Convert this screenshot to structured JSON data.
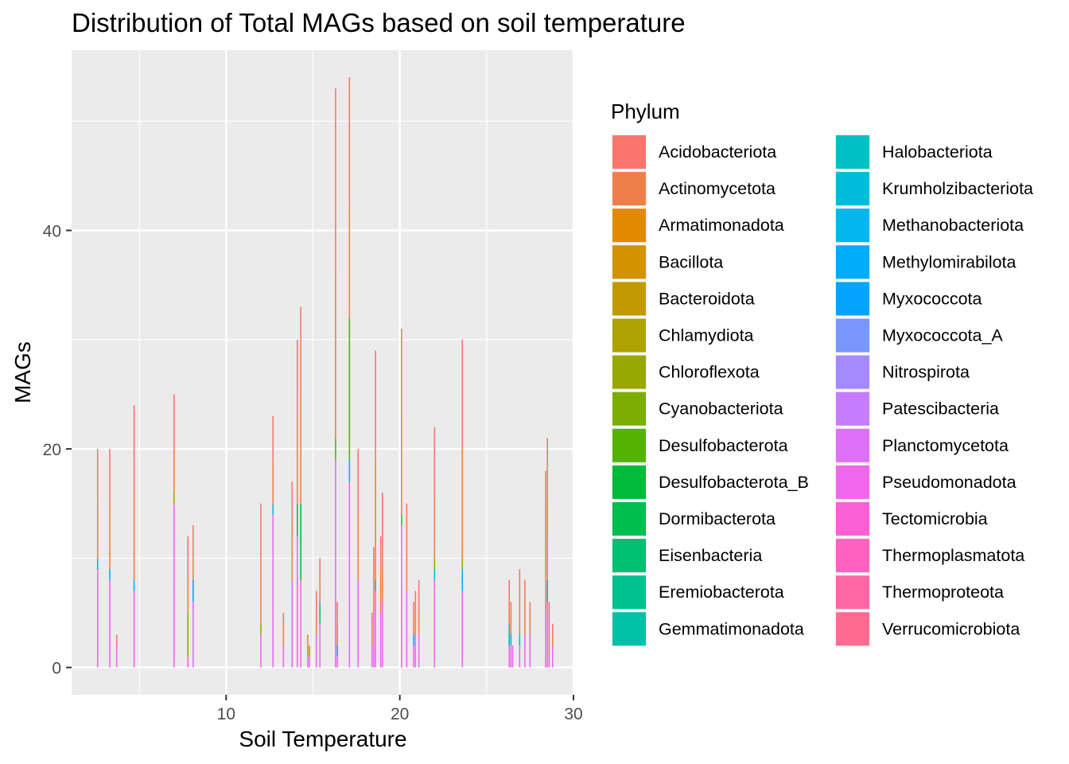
{
  "chart_data": {
    "type": "bar",
    "stacked": true,
    "title": "Distribution of Total MAGs based on soil temperature",
    "xlabel": "Soil Temperature",
    "ylabel": "MAGs",
    "xlim": [
      1.1,
      30
    ],
    "ylim": [
      -2.5,
      56.5
    ],
    "x_ticks": [
      10,
      20,
      30
    ],
    "y_ticks": [
      0,
      20,
      40
    ],
    "grid": true,
    "panel_background": "#ebebeb",
    "legend": {
      "title": "Phylum",
      "placement": "right",
      "columns": 2,
      "items": [
        {
          "name": "Acidobacteriota",
          "color": "#F8766D"
        },
        {
          "name": "Actinomycetota",
          "color": "#EF7F49"
        },
        {
          "name": "Armatimonadota",
          "color": "#E38900"
        },
        {
          "name": "Bacillota",
          "color": "#D39200"
        },
        {
          "name": "Bacteroidota",
          "color": "#C29A00"
        },
        {
          "name": "Chlamydiota",
          "color": "#AFA100"
        },
        {
          "name": "Chloroflexota",
          "color": "#99A800"
        },
        {
          "name": "Cyanobacteriota",
          "color": "#7CAE00"
        },
        {
          "name": "Desulfobacterota",
          "color": "#53B400"
        },
        {
          "name": "Desulfobacterota_B",
          "color": "#00BA38"
        },
        {
          "name": "Dormibacterota",
          "color": "#00BE4E"
        },
        {
          "name": "Eisenbacteria",
          "color": "#00C071"
        },
        {
          "name": "Eremiobacterota",
          "color": "#00C08D"
        },
        {
          "name": "Gemmatimonadota",
          "color": "#00C0A7"
        },
        {
          "name": "Halobacteriota",
          "color": "#00BFC4"
        },
        {
          "name": "Krumholzibacteriota",
          "color": "#00BBDA"
        },
        {
          "name": "Methanobacteriota",
          "color": "#00B6EB"
        },
        {
          "name": "Methylomirabilota",
          "color": "#00ACFC"
        },
        {
          "name": "Myxococcota",
          "color": "#06A4FF"
        },
        {
          "name": "Myxococcota_A",
          "color": "#7997FF"
        },
        {
          "name": "Nitrospirota",
          "color": "#A58AFF"
        },
        {
          "name": "Patescibacteria",
          "color": "#C77CFF"
        },
        {
          "name": "Planctomycetota",
          "color": "#DF70F8"
        },
        {
          "name": "Pseudomonadota",
          "color": "#EF67EB"
        },
        {
          "name": "Tectomicrobia",
          "color": "#FB61D7"
        },
        {
          "name": "Thermoplasmatota",
          "color": "#FF62C0"
        },
        {
          "name": "Thermoproteota",
          "color": "#FF67A4"
        },
        {
          "name": "Verrucomicrobiota",
          "color": "#FF6C90"
        }
      ]
    },
    "bars": [
      {
        "x": 2.6,
        "segments": [
          {
            "phylum": "Pseudomonadota",
            "value": 9
          },
          {
            "phylum": "Methylomirabilota",
            "value": 1
          },
          {
            "phylum": "Actinomycetota",
            "value": 5
          },
          {
            "phylum": "Acidobacteriota",
            "value": 5
          }
        ]
      },
      {
        "x": 3.3,
        "segments": [
          {
            "phylum": "Pseudomonadota",
            "value": 8
          },
          {
            "phylum": "Methylomirabilota",
            "value": 1
          },
          {
            "phylum": "Actinomycetota",
            "value": 6
          },
          {
            "phylum": "Acidobacteriota",
            "value": 5
          }
        ]
      },
      {
        "x": 3.7,
        "segments": [
          {
            "phylum": "Pseudomonadota",
            "value": 2
          },
          {
            "phylum": "Acidobacteriota",
            "value": 1
          }
        ]
      },
      {
        "x": 4.7,
        "segments": [
          {
            "phylum": "Pseudomonadota",
            "value": 7
          },
          {
            "phylum": "Methylomirabilota",
            "value": 1
          },
          {
            "phylum": "Actinomycetota",
            "value": 8
          },
          {
            "phylum": "Acidobacteriota",
            "value": 8
          }
        ]
      },
      {
        "x": 7.0,
        "segments": [
          {
            "phylum": "Pseudomonadota",
            "value": 15
          },
          {
            "phylum": "Chloroflexota",
            "value": 1
          },
          {
            "phylum": "Actinomycetota",
            "value": 4
          },
          {
            "phylum": "Acidobacteriota",
            "value": 5
          }
        ]
      },
      {
        "x": 7.8,
        "segments": [
          {
            "phylum": "Pseudomonadota",
            "value": 1
          },
          {
            "phylum": "Chloroflexota",
            "value": 4
          },
          {
            "phylum": "Actinomycetota",
            "value": 3
          },
          {
            "phylum": "Acidobacteriota",
            "value": 4
          }
        ]
      },
      {
        "x": 8.1,
        "segments": [
          {
            "phylum": "Pseudomonadota",
            "value": 6
          },
          {
            "phylum": "Myxococcota",
            "value": 2
          },
          {
            "phylum": "Actinomycetota",
            "value": 2
          },
          {
            "phylum": "Acidobacteriota",
            "value": 3
          }
        ]
      },
      {
        "x": 12.0,
        "segments": [
          {
            "phylum": "Pseudomonadota",
            "value": 3
          },
          {
            "phylum": "Chloroflexota",
            "value": 1
          },
          {
            "phylum": "Actinomycetota",
            "value": 6
          },
          {
            "phylum": "Acidobacteriota",
            "value": 5
          }
        ]
      },
      {
        "x": 12.7,
        "segments": [
          {
            "phylum": "Pseudomonadota",
            "value": 14
          },
          {
            "phylum": "Halobacteriota",
            "value": 1
          },
          {
            "phylum": "Actinomycetota",
            "value": 4
          },
          {
            "phylum": "Acidobacteriota",
            "value": 4
          }
        ]
      },
      {
        "x": 13.3,
        "segments": [
          {
            "phylum": "Pseudomonadota",
            "value": 2
          },
          {
            "phylum": "Actinomycetota",
            "value": 2
          },
          {
            "phylum": "Acidobacteriota",
            "value": 1
          }
        ]
      },
      {
        "x": 13.8,
        "segments": [
          {
            "phylum": "Pseudomonadota",
            "value": 8
          },
          {
            "phylum": "Actinomycetota",
            "value": 5
          },
          {
            "phylum": "Acidobacteriota",
            "value": 4
          }
        ]
      },
      {
        "x": 14.1,
        "segments": [
          {
            "phylum": "Pseudomonadota",
            "value": 12
          },
          {
            "phylum": "Dormibacterota",
            "value": 3
          },
          {
            "phylum": "Actinomycetota",
            "value": 8
          },
          {
            "phylum": "Acidobacteriota",
            "value": 7
          }
        ]
      },
      {
        "x": 14.3,
        "segments": [
          {
            "phylum": "Pseudomonadota",
            "value": 8
          },
          {
            "phylum": "Desulfobacterota_B",
            "value": 7
          },
          {
            "phylum": "Actinomycetota",
            "value": 10
          },
          {
            "phylum": "Acidobacteriota",
            "value": 8
          }
        ]
      },
      {
        "x": 14.7,
        "segments": [
          {
            "phylum": "Pseudomonadota",
            "value": 1
          },
          {
            "phylum": "Bacteroidota",
            "value": 1
          },
          {
            "phylum": "Actinomycetota",
            "value": 1
          }
        ]
      },
      {
        "x": 14.8,
        "segments": [
          {
            "phylum": "Pseudomonadota",
            "value": 1
          },
          {
            "phylum": "Armatimonadota",
            "value": 1
          }
        ]
      },
      {
        "x": 15.2,
        "segments": [
          {
            "phylum": "Pseudomonadota",
            "value": 3
          },
          {
            "phylum": "Actinomycetota",
            "value": 2
          },
          {
            "phylum": "Acidobacteriota",
            "value": 2
          }
        ]
      },
      {
        "x": 15.4,
        "segments": [
          {
            "phylum": "Pseudomonadota",
            "value": 4
          },
          {
            "phylum": "Eremiobacterota",
            "value": 2
          },
          {
            "phylum": "Actinomycetota",
            "value": 2
          },
          {
            "phylum": "Acidobacteriota",
            "value": 2
          }
        ]
      },
      {
        "x": 16.3,
        "segments": [
          {
            "phylum": "Pseudomonadota",
            "value": 19
          },
          {
            "phylum": "Desulfobacterota",
            "value": 2
          },
          {
            "phylum": "Actinomycetota",
            "value": 15
          },
          {
            "phylum": "Acidobacteriota",
            "value": 17
          }
        ]
      },
      {
        "x": 16.4,
        "segments": [
          {
            "phylum": "Pseudomonadota",
            "value": 1
          },
          {
            "phylum": "Myxococcota",
            "value": 1
          },
          {
            "phylum": "Armatimonadota",
            "value": 2
          },
          {
            "phylum": "Acidobacteriota",
            "value": 2
          }
        ]
      },
      {
        "x": 17.1,
        "segments": [
          {
            "phylum": "Pseudomonadota",
            "value": 17
          },
          {
            "phylum": "Methylomirabilota",
            "value": 2
          },
          {
            "phylum": "Desulfobacterota",
            "value": 13
          },
          {
            "phylum": "Actinomycetota",
            "value": 10
          },
          {
            "phylum": "Acidobacteriota",
            "value": 12
          }
        ]
      },
      {
        "x": 17.6,
        "segments": [
          {
            "phylum": "Pseudomonadota",
            "value": 8
          },
          {
            "phylum": "Actinomycetota",
            "value": 6
          },
          {
            "phylum": "Acidobacteriota",
            "value": 6
          }
        ]
      },
      {
        "x": 18.4,
        "segments": [
          {
            "phylum": "Pseudomonadota",
            "value": 2
          },
          {
            "phylum": "Actinomycetota",
            "value": 2
          },
          {
            "phylum": "Acidobacteriota",
            "value": 1
          }
        ]
      },
      {
        "x": 18.5,
        "segments": [
          {
            "phylum": "Pseudomonadota",
            "value": 5
          },
          {
            "phylum": "Actinomycetota",
            "value": 3
          },
          {
            "phylum": "Acidobacteriota",
            "value": 3
          }
        ]
      },
      {
        "x": 18.6,
        "segments": [
          {
            "phylum": "Pseudomonadota",
            "value": 7
          },
          {
            "phylum": "Methylomirabilota",
            "value": 1
          },
          {
            "phylum": "Actinomycetota",
            "value": 11
          },
          {
            "phylum": "Acidobacteriota",
            "value": 10
          }
        ]
      },
      {
        "x": 18.9,
        "segments": [
          {
            "phylum": "Pseudomonadota",
            "value": 5
          },
          {
            "phylum": "Actinomycetota",
            "value": 4
          },
          {
            "phylum": "Acidobacteriota",
            "value": 3
          }
        ]
      },
      {
        "x": 19.0,
        "segments": [
          {
            "phylum": "Pseudomonadota",
            "value": 6
          },
          {
            "phylum": "Actinomycetota",
            "value": 5
          },
          {
            "phylum": "Acidobacteriota",
            "value": 5
          }
        ]
      },
      {
        "x": 20.1,
        "segments": [
          {
            "phylum": "Pseudomonadota",
            "value": 13
          },
          {
            "phylum": "Desulfobacterota",
            "value": 1
          },
          {
            "phylum": "Actinomycetota",
            "value": 9
          },
          {
            "phylum": "Acidobacteriota",
            "value": 8
          }
        ]
      },
      {
        "x": 20.4,
        "segments": [
          {
            "phylum": "Pseudomonadota",
            "value": 7
          },
          {
            "phylum": "Actinomycetota",
            "value": 4
          },
          {
            "phylum": "Acidobacteriota",
            "value": 4
          }
        ]
      },
      {
        "x": 20.8,
        "segments": [
          {
            "phylum": "Pseudomonadota",
            "value": 2
          },
          {
            "phylum": "Methylomirabilota",
            "value": 1
          },
          {
            "phylum": "Actinomycetota",
            "value": 2
          },
          {
            "phylum": "Acidobacteriota",
            "value": 1
          }
        ]
      },
      {
        "x": 20.9,
        "segments": [
          {
            "phylum": "Pseudomonadota",
            "value": 3
          },
          {
            "phylum": "Actinomycetota",
            "value": 2
          },
          {
            "phylum": "Acidobacteriota",
            "value": 2
          }
        ]
      },
      {
        "x": 21.1,
        "segments": [
          {
            "phylum": "Pseudomonadota",
            "value": 3
          },
          {
            "phylum": "Actinomycetota",
            "value": 3
          },
          {
            "phylum": "Acidobacteriota",
            "value": 2
          }
        ]
      },
      {
        "x": 22.0,
        "segments": [
          {
            "phylum": "Pseudomonadota",
            "value": 8
          },
          {
            "phylum": "Halobacteriota",
            "value": 1
          },
          {
            "phylum": "Chloroflexota",
            "value": 1
          },
          {
            "phylum": "Actinomycetota",
            "value": 6
          },
          {
            "phylum": "Acidobacteriota",
            "value": 6
          }
        ]
      },
      {
        "x": 23.6,
        "segments": [
          {
            "phylum": "Pseudomonadota",
            "value": 7
          },
          {
            "phylum": "Methylomirabilota",
            "value": 2
          },
          {
            "phylum": "Chloroflexota",
            "value": 1
          },
          {
            "phylum": "Actinomycetota",
            "value": 10
          },
          {
            "phylum": "Acidobacteriota",
            "value": 10
          }
        ]
      },
      {
        "x": 26.3,
        "segments": [
          {
            "phylum": "Pseudomonadota",
            "value": 2
          },
          {
            "phylum": "Gemmatimonadota",
            "value": 2
          },
          {
            "phylum": "Actinomycetota",
            "value": 2
          },
          {
            "phylum": "Acidobacteriota",
            "value": 2
          }
        ]
      },
      {
        "x": 26.4,
        "segments": [
          {
            "phylum": "Pseudomonadota",
            "value": 2
          },
          {
            "phylum": "Methylomirabilota",
            "value": 1
          },
          {
            "phylum": "Actinomycetota",
            "value": 2
          },
          {
            "phylum": "Acidobacteriota",
            "value": 1
          }
        ]
      },
      {
        "x": 26.5,
        "segments": [
          {
            "phylum": "Pseudomonadota",
            "value": 2
          }
        ]
      },
      {
        "x": 26.9,
        "segments": [
          {
            "phylum": "Pseudomonadota",
            "value": 2
          },
          {
            "phylum": "Halobacteriota",
            "value": 1
          },
          {
            "phylum": "Actinomycetota",
            "value": 3
          },
          {
            "phylum": "Acidobacteriota",
            "value": 3
          }
        ]
      },
      {
        "x": 27.2,
        "segments": [
          {
            "phylum": "Pseudomonadota",
            "value": 3
          },
          {
            "phylum": "Actinomycetota",
            "value": 3
          },
          {
            "phylum": "Acidobacteriota",
            "value": 2
          }
        ]
      },
      {
        "x": 27.5,
        "segments": [
          {
            "phylum": "Pseudomonadota",
            "value": 3
          },
          {
            "phylum": "Actinomycetota",
            "value": 2
          },
          {
            "phylum": "Acidobacteriota",
            "value": 1
          }
        ]
      },
      {
        "x": 28.4,
        "segments": [
          {
            "phylum": "Pseudomonadota",
            "value": 5
          },
          {
            "phylum": "Actinomycetota",
            "value": 7
          },
          {
            "phylum": "Acidobacteriota",
            "value": 6
          }
        ]
      },
      {
        "x": 28.5,
        "segments": [
          {
            "phylum": "Pseudomonadota",
            "value": 6
          },
          {
            "phylum": "Myxococcota",
            "value": 2
          },
          {
            "phylum": "Actinomycetota",
            "value": 7
          },
          {
            "phylum": "Acidobacteriota",
            "value": 6
          }
        ]
      },
      {
        "x": 28.6,
        "segments": [
          {
            "phylum": "Pseudomonadota",
            "value": 1
          },
          {
            "phylum": "Actinomycetota",
            "value": 2
          },
          {
            "phylum": "Acidobacteriota",
            "value": 3
          }
        ]
      },
      {
        "x": 28.8,
        "segments": [
          {
            "phylum": "Pseudomonadota",
            "value": 2
          },
          {
            "phylum": "Actinomycetota",
            "value": 1
          },
          {
            "phylum": "Acidobacteriota",
            "value": 1
          }
        ]
      }
    ]
  }
}
